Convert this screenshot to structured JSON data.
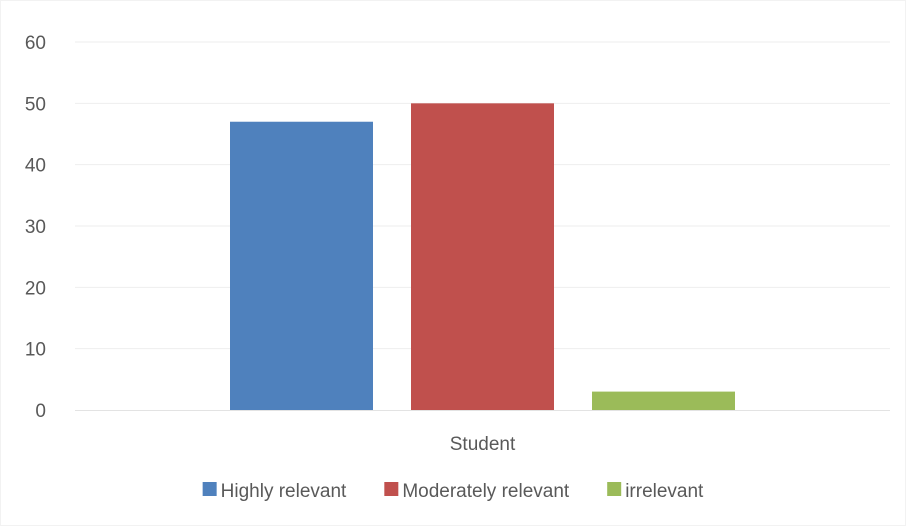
{
  "chart_data": {
    "type": "bar",
    "categories": [
      "Student"
    ],
    "series": [
      {
        "name": "Highly relevant",
        "values": [
          47
        ],
        "color": "#4f81bd"
      },
      {
        "name": "Moderately relevant",
        "values": [
          50
        ],
        "color": "#c0504d"
      },
      {
        "name": "irrelevant",
        "values": [
          3
        ],
        "color": "#9bbb59"
      }
    ],
    "ylim": [
      0,
      60
    ],
    "yticks": [
      0,
      10,
      20,
      30,
      40,
      50,
      60
    ],
    "grid": true,
    "legend_position": "bottom"
  }
}
